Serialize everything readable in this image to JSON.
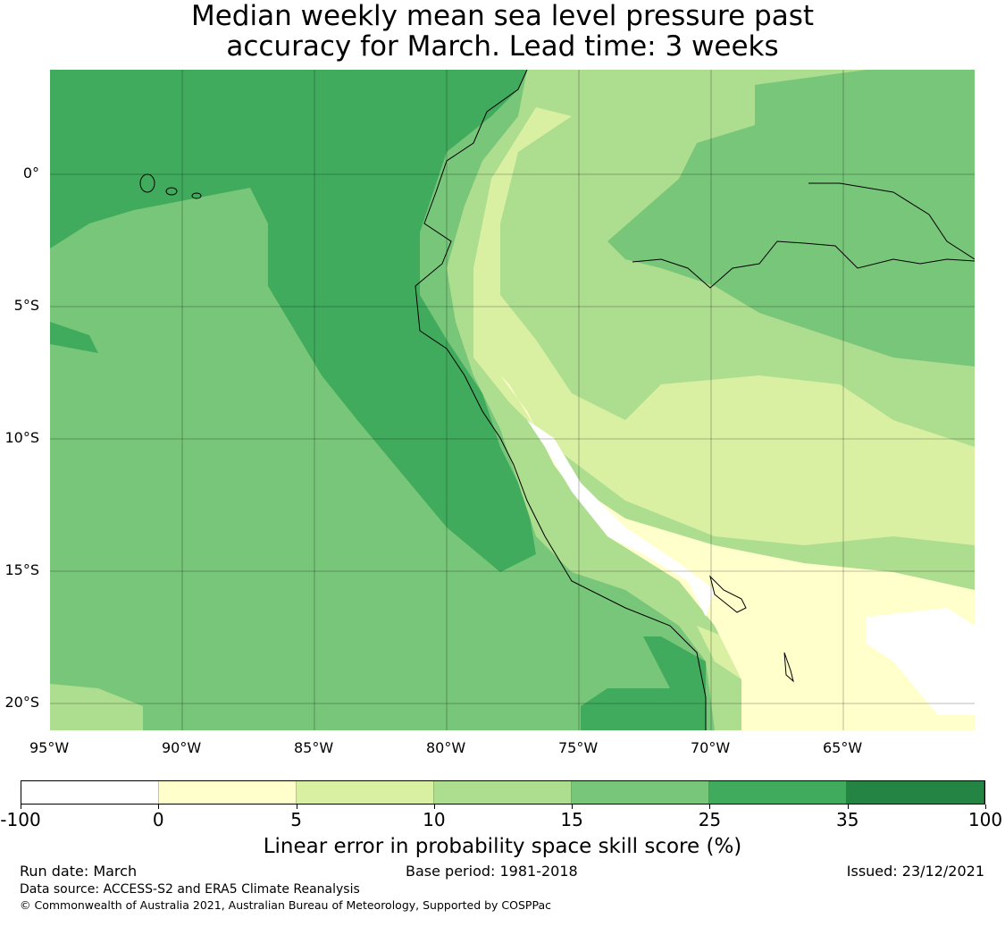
{
  "title": {
    "line1": "Median weekly mean sea level pressure past",
    "line2": "accuracy for March. Lead time: 3 weeks"
  },
  "map": {
    "lon_ticks": [
      "95°W",
      "90°W",
      "85°W",
      "80°W",
      "75°W",
      "70°W",
      "65°W"
    ],
    "lat_ticks": [
      "0°",
      "5°S",
      "10°S",
      "15°S",
      "20°S"
    ],
    "extent": {
      "lon": [
        -95,
        -60
      ],
      "lat": [
        -21,
        4
      ]
    }
  },
  "colorbar": {
    "bounds": [
      "-100",
      "0",
      "5",
      "10",
      "15",
      "25",
      "35",
      "100"
    ],
    "colors": [
      "#ffffff",
      "#ffffcc",
      "#d9f0a3",
      "#addd8e",
      "#78c679",
      "#41ab5d",
      "#238443"
    ],
    "label": "Linear error in probability space skill score (%)"
  },
  "footer": {
    "run_date": "Run date: March",
    "base_period": "Base period: 1981-2018",
    "issued": "Issued: 23/12/2021",
    "source": "Data source: ACCESS-S2 and ERA5 Climate Reanalysis",
    "copyright": "© Commonwealth of Australia 2021, Australian Bureau of Meteorology, Supported by COSPPac"
  }
}
